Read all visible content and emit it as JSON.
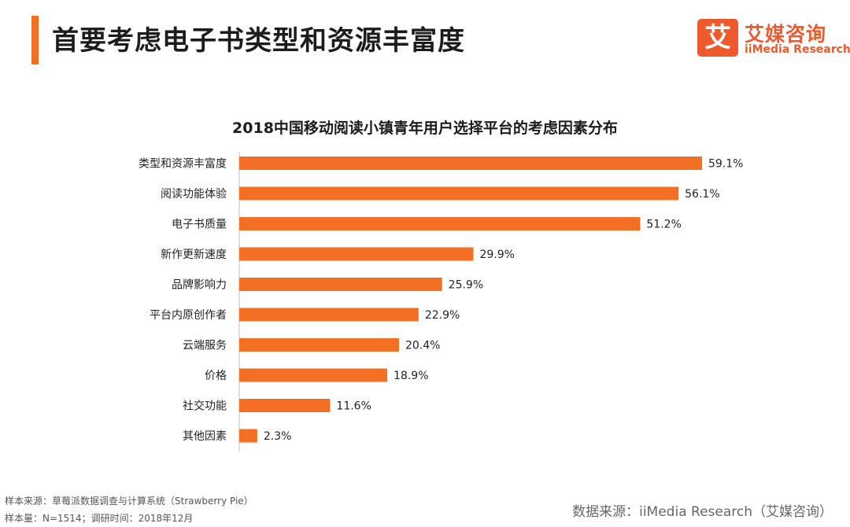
{
  "header": {
    "title": "首要考虑电子书类型和资源丰富度",
    "brand_mark": "艾",
    "brand_cn": "艾媒咨询",
    "brand_en": "iiMedia Research",
    "accent_color": "#f36f23",
    "brand_color": "#ef5a2d"
  },
  "chart_data": {
    "type": "bar",
    "orientation": "horizontal",
    "title": "2018中国移动阅读小镇青年用户选择平台的考虑因素分布",
    "categories": [
      "类型和资源丰富度",
      "阅读功能体验",
      "电子书质量",
      "新作更新速度",
      "品牌影响力",
      "平台内原创作者",
      "云端服务",
      "价格",
      "社交功能",
      "其他因素"
    ],
    "values": [
      59.1,
      56.1,
      51.2,
      29.9,
      25.9,
      22.9,
      20.4,
      18.9,
      11.6,
      2.3
    ],
    "value_labels": [
      "59.1%",
      "56.1%",
      "51.2%",
      "29.9%",
      "25.9%",
      "22.9%",
      "20.4%",
      "18.9%",
      "11.6%",
      "2.3%"
    ],
    "unit": "%",
    "xlim": [
      0,
      59.1
    ],
    "bar_color": "#f36f23",
    "grid": false,
    "legend": "none"
  },
  "footer": {
    "sample_source": "样本来源：草莓派数据调查与计算系统（Strawberry Pie）",
    "sample_size": "样本量：N=1514；调研时间：2018年12月",
    "data_source": "数据来源：iiMedia Research（艾媒咨询）"
  }
}
